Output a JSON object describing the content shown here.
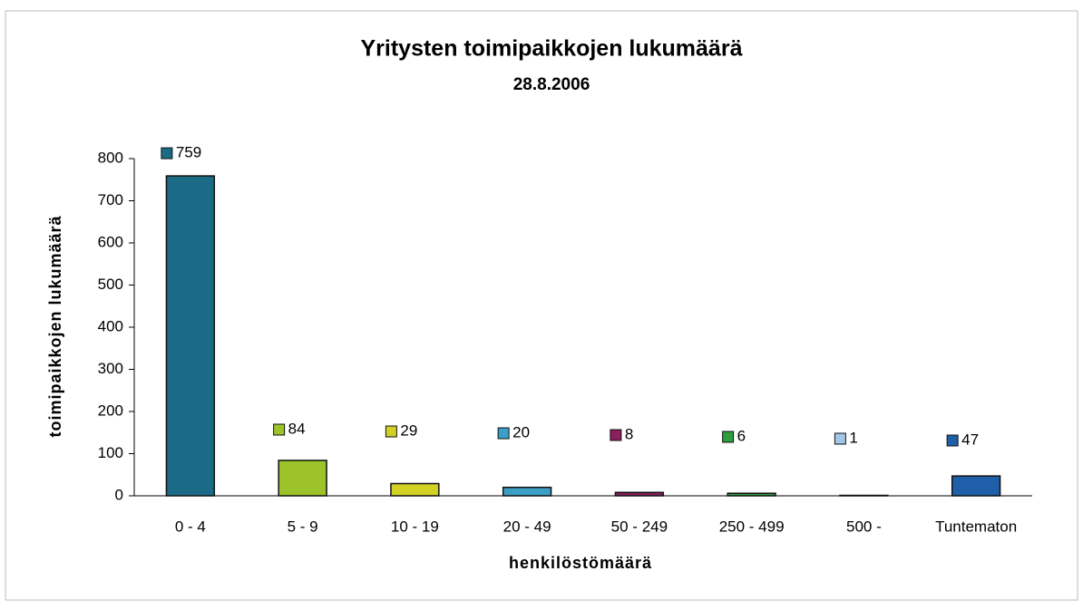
{
  "chart_data": {
    "type": "bar",
    "title": "Yritysten toimipaikkojen lukumäärä",
    "subtitle": "28.8.2006",
    "x_label": "henkilöstömäärä",
    "y_label": "toimipaikkojen lukumäärä",
    "categories": [
      "0 - 4",
      "5 - 9",
      "10 - 19",
      "20 - 49",
      "50 - 249",
      "250 - 499",
      "500 -",
      "Tuntematon"
    ],
    "values": [
      759,
      84,
      29,
      20,
      8,
      6,
      1,
      47
    ],
    "colors": [
      "#1b6a86",
      "#9cc32a",
      "#d2cf25",
      "#3b9fc6",
      "#8a1f5c",
      "#2e9e3e",
      "#a4c6e6",
      "#1f5ea8"
    ],
    "ylim": [
      0,
      800
    ],
    "yticks": [
      0,
      100,
      200,
      300,
      400,
      500,
      600,
      700,
      800
    ]
  }
}
